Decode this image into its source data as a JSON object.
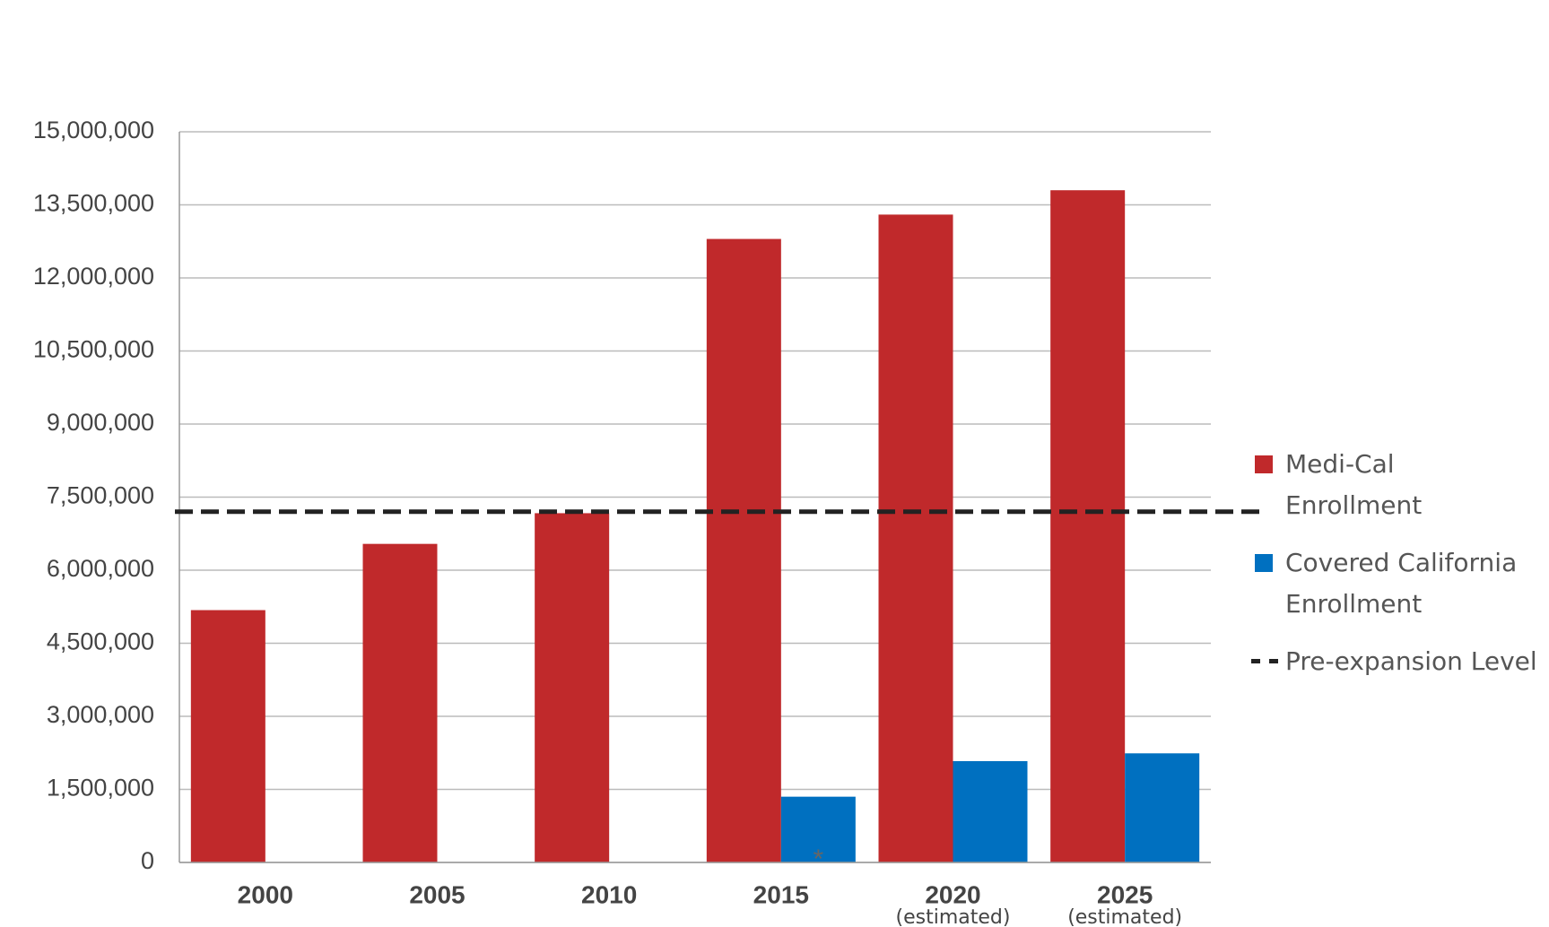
{
  "chart_data": {
    "type": "bar",
    "categories": [
      "2000",
      "2005",
      "2010",
      "2015",
      "2020",
      "2025"
    ],
    "category_notes": [
      null,
      null,
      null,
      null,
      "(estimated)",
      "(estimated)"
    ],
    "series": [
      {
        "name": "Medi-Cal Enrollment",
        "color": "#c0292b",
        "values": [
          5180000,
          6540000,
          7170000,
          12800000,
          13300000,
          13800000
        ]
      },
      {
        "name": "Covered California Enrollment",
        "color": "#0070c0",
        "values": [
          null,
          null,
          null,
          1350000,
          2080000,
          2240000
        ]
      }
    ],
    "reference_line": {
      "name": "Pre-expansion Level",
      "value": 7200000,
      "color": "#222222"
    },
    "annotations": [
      "*"
    ],
    "ylim": [
      0,
      15000000
    ],
    "yticks": [
      0,
      {
        "value": 1500000,
        "label": "1,500,000"
      },
      {
        "value": 3000000,
        "label": "3,000,000"
      },
      {
        "value": 4500000,
        "label": "4,500,000"
      },
      {
        "value": 6000000,
        "label": "6,000,000"
      },
      {
        "value": 7500000,
        "label": "7,500,000"
      },
      {
        "value": 9000000,
        "label": "9,000,000"
      },
      {
        "value": 10500000,
        "label": "10,500,000"
      },
      {
        "value": 12000000,
        "label": "12,000,000"
      },
      {
        "value": 13500000,
        "label": "13,500,000"
      },
      {
        "value": 15000000,
        "label": "15,000,000"
      }
    ],
    "grid": true
  }
}
